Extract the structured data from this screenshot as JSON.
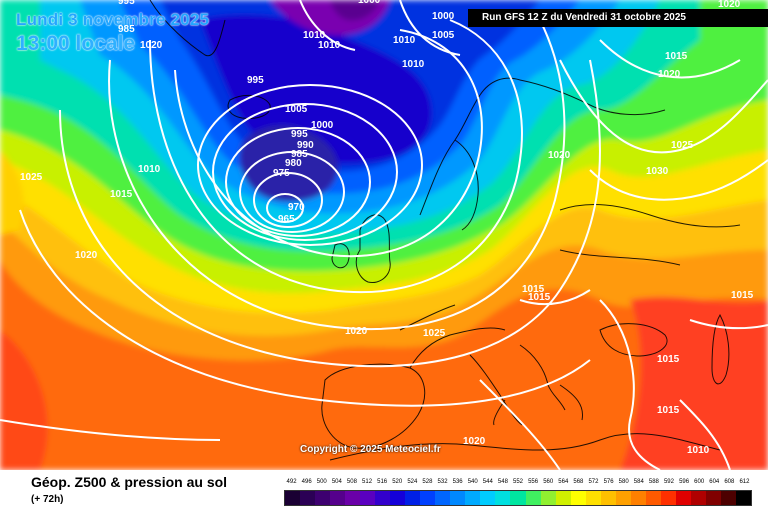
{
  "header": {
    "date": "Lundi 3 novembre 2025",
    "time": "13:00 locale",
    "run": "Run GFS 12 Z du Vendredi 31 octobre 2025"
  },
  "copyright": "Copyright © 2025 Meteociel.fr",
  "footer": {
    "title": "Géop. Z500 & pression au sol",
    "lead": "(+ 72h)"
  },
  "scale": {
    "labels": [
      "492",
      "496",
      "500",
      "504",
      "508",
      "512",
      "516",
      "520",
      "524",
      "528",
      "532",
      "536",
      "540",
      "544",
      "548",
      "552",
      "556",
      "560",
      "564",
      "568",
      "572",
      "576",
      "580",
      "584",
      "588",
      "592",
      "596",
      "600",
      "604",
      "608",
      "612"
    ],
    "colors": [
      "#1a0033",
      "#2b0055",
      "#3d0070",
      "#55008c",
      "#6a00a8",
      "#5a00c0",
      "#3300cc",
      "#1400d9",
      "#0020e6",
      "#0040ff",
      "#0066ff",
      "#0088ff",
      "#00aaff",
      "#00ccff",
      "#00e0e0",
      "#00e6a0",
      "#40f060",
      "#90f030",
      "#d0f000",
      "#ffff00",
      "#ffe000",
      "#ffc000",
      "#ffa000",
      "#ff8000",
      "#ff5a00",
      "#ff3000",
      "#e00000",
      "#b00000",
      "#800000",
      "#4d0000",
      "#000000"
    ]
  },
  "pressure_labels": [
    "995",
    "1010",
    "1000",
    "985",
    "1000",
    "1005",
    "1010",
    "1010",
    "1010",
    "995",
    "1005",
    "1000",
    "995",
    "990",
    "985",
    "980",
    "975",
    "970",
    "965",
    "1010",
    "1015",
    "1025",
    "1020",
    "1020",
    "1020",
    "1025",
    "1015",
    "1015",
    "1020",
    "1015",
    "1020",
    "1025",
    "1030",
    "1015",
    "1015",
    "1015",
    "1020",
    "1010",
    "1020"
  ]
}
